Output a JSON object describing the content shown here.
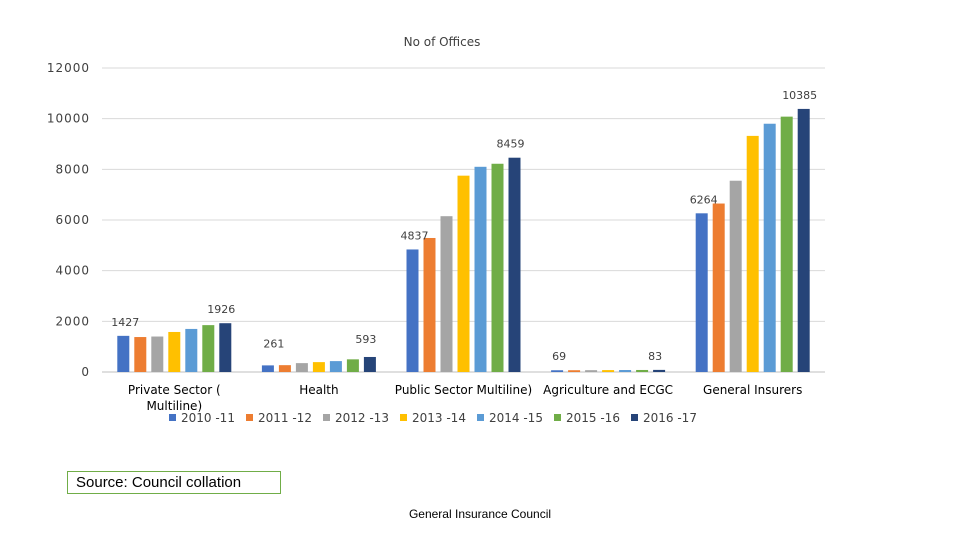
{
  "chart_data": {
    "type": "bar",
    "title": "No of Offices",
    "xlabel": "",
    "ylabel": "",
    "ylim": [
      0,
      12000
    ],
    "yticks": [
      0,
      2000,
      4000,
      6000,
      8000,
      10000,
      12000
    ],
    "grid": true,
    "legend_position": "bottom",
    "categories": [
      [
        "Private  Sector (",
        "Multiline)"
      ],
      [
        "Health"
      ],
      [
        "Public Sector Multiline)"
      ],
      [
        "Agriculture and ECGC"
      ],
      [
        "General Insurers"
      ]
    ],
    "series": [
      {
        "name": "2010 -11",
        "color": "#4472c4",
        "values": [
          1427,
          261,
          4837,
          69,
          6264
        ]
      },
      {
        "name": "2011 -12",
        "color": "#ed7d31",
        "values": [
          1380,
          270,
          5290,
          70,
          6650
        ]
      },
      {
        "name": "2012 -13",
        "color": "#a5a5a5",
        "values": [
          1400,
          350,
          6150,
          72,
          7550
        ]
      },
      {
        "name": "2013 -14",
        "color": "#ffc000",
        "values": [
          1580,
          390,
          7750,
          75,
          9320
        ]
      },
      {
        "name": "2014 -15",
        "color": "#5b9bd5",
        "values": [
          1700,
          430,
          8100,
          78,
          9800
        ]
      },
      {
        "name": "2015 -16",
        "color": "#70ad47",
        "values": [
          1850,
          500,
          8220,
          80,
          10080
        ]
      },
      {
        "name": "2016 -17",
        "color": "#264478",
        "values": [
          1926,
          593,
          8459,
          83,
          10385
        ]
      }
    ],
    "data_labels": [
      {
        "series": 0,
        "category": 0,
        "text": "1427"
      },
      {
        "series": 6,
        "category": 0,
        "text": "1926"
      },
      {
        "series": 0,
        "category": 1,
        "text": "261"
      },
      {
        "series": 6,
        "category": 1,
        "text": "593"
      },
      {
        "series": 0,
        "category": 2,
        "text": "4837"
      },
      {
        "series": 6,
        "category": 2,
        "text": "8459"
      },
      {
        "series": 0,
        "category": 3,
        "text": "69"
      },
      {
        "series": 6,
        "category": 3,
        "text": "83"
      },
      {
        "series": 0,
        "category": 4,
        "text": "6264"
      },
      {
        "series": 6,
        "category": 4,
        "text": "10385"
      }
    ]
  },
  "source_note": "Source: Council collation",
  "footer": "General Insurance Council"
}
